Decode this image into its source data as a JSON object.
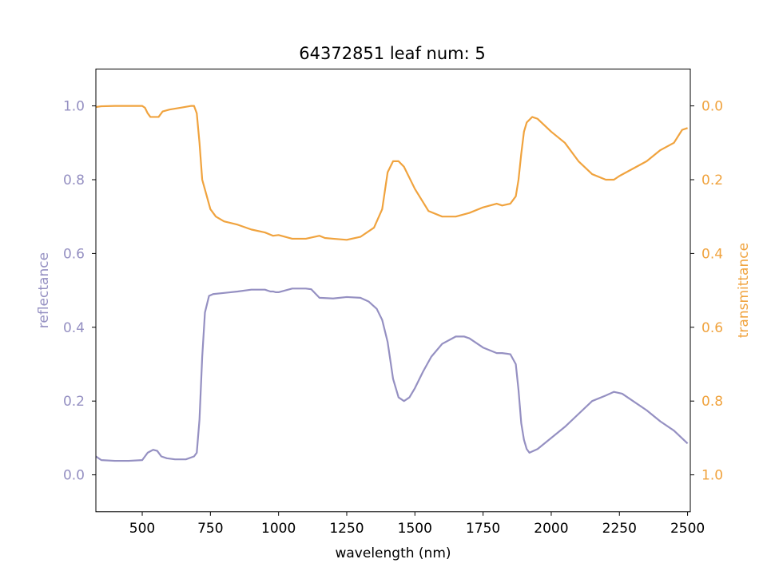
{
  "chart_data": {
    "type": "line",
    "title": "64372851 leaf num: 5",
    "xlabel": "wavelength (nm)",
    "ylabel_left": "reflectance",
    "ylabel_right": "transmittance",
    "xlim": [
      330,
      2510
    ],
    "ylim_left": [
      -0.1,
      1.1
    ],
    "ylim_right": [
      1.1,
      -0.1
    ],
    "right_axis_inverted": true,
    "grid": false,
    "x_ticks": [
      "500",
      "750",
      "1000",
      "1250",
      "1500",
      "1750",
      "2000",
      "2250",
      "2500"
    ],
    "y_ticks_left": [
      "0.0",
      "0.2",
      "0.4",
      "0.6",
      "0.8",
      "1.0"
    ],
    "y_ticks_right": [
      "0.0",
      "0.2",
      "0.4",
      "0.6",
      "0.8",
      "1.0"
    ],
    "colors": {
      "reflectance": "#9590c2",
      "transmittance": "#f0a33e"
    },
    "series": [
      {
        "key": "reflectance",
        "axis": "left",
        "x": [
          330,
          350,
          400,
          450,
          500,
          520,
          540,
          555,
          570,
          590,
          620,
          660,
          690,
          700,
          710,
          720,
          730,
          745,
          760,
          800,
          850,
          900,
          950,
          970,
          980,
          990,
          1000,
          1050,
          1100,
          1120,
          1150,
          1200,
          1250,
          1300,
          1330,
          1360,
          1380,
          1400,
          1420,
          1440,
          1460,
          1480,
          1500,
          1530,
          1560,
          1600,
          1650,
          1680,
          1700,
          1750,
          1800,
          1820,
          1850,
          1870,
          1880,
          1890,
          1900,
          1910,
          1920,
          1950,
          2000,
          2050,
          2100,
          2150,
          2200,
          2230,
          2260,
          2300,
          2350,
          2400,
          2450,
          2500
        ],
        "y": [
          0.05,
          0.04,
          0.038,
          0.038,
          0.04,
          0.06,
          0.068,
          0.065,
          0.05,
          0.045,
          0.042,
          0.042,
          0.05,
          0.06,
          0.15,
          0.32,
          0.44,
          0.485,
          0.49,
          0.493,
          0.497,
          0.502,
          0.502,
          0.497,
          0.497,
          0.495,
          0.495,
          0.505,
          0.505,
          0.503,
          0.48,
          0.478,
          0.482,
          0.48,
          0.47,
          0.45,
          0.42,
          0.36,
          0.26,
          0.21,
          0.2,
          0.21,
          0.235,
          0.28,
          0.32,
          0.355,
          0.375,
          0.375,
          0.37,
          0.345,
          0.33,
          0.33,
          0.327,
          0.3,
          0.23,
          0.14,
          0.095,
          0.07,
          0.06,
          0.07,
          0.1,
          0.13,
          0.165,
          0.2,
          0.215,
          0.225,
          0.22,
          0.2,
          0.175,
          0.145,
          0.12,
          0.085
        ]
      },
      {
        "key": "transmittance",
        "axis": "right",
        "x": [
          330,
          350,
          400,
          450,
          500,
          510,
          520,
          530,
          545,
          560,
          575,
          600,
          640,
          680,
          690,
          700,
          710,
          720,
          735,
          750,
          770,
          800,
          850,
          900,
          950,
          980,
          1000,
          1050,
          1100,
          1150,
          1170,
          1200,
          1250,
          1300,
          1350,
          1380,
          1400,
          1420,
          1440,
          1460,
          1480,
          1500,
          1550,
          1600,
          1650,
          1700,
          1750,
          1800,
          1820,
          1850,
          1870,
          1880,
          1890,
          1900,
          1910,
          1930,
          1950,
          2000,
          2050,
          2100,
          2150,
          2200,
          2230,
          2250,
          2300,
          2350,
          2400,
          2450,
          2480,
          2500
        ],
        "y": [
          0.003,
          0.001,
          0.0,
          0.0,
          0.0,
          0.005,
          0.02,
          0.03,
          0.03,
          0.03,
          0.015,
          0.01,
          0.005,
          0.0,
          0.0,
          0.02,
          0.1,
          0.2,
          0.24,
          0.28,
          0.3,
          0.313,
          0.322,
          0.335,
          0.343,
          0.352,
          0.35,
          0.36,
          0.36,
          0.352,
          0.358,
          0.36,
          0.363,
          0.355,
          0.33,
          0.28,
          0.18,
          0.15,
          0.15,
          0.165,
          0.195,
          0.225,
          0.285,
          0.3,
          0.3,
          0.29,
          0.275,
          0.265,
          0.27,
          0.265,
          0.245,
          0.2,
          0.13,
          0.07,
          0.045,
          0.03,
          0.035,
          0.07,
          0.1,
          0.15,
          0.185,
          0.2,
          0.2,
          0.19,
          0.17,
          0.15,
          0.12,
          0.1,
          0.065,
          0.06
        ]
      }
    ]
  }
}
